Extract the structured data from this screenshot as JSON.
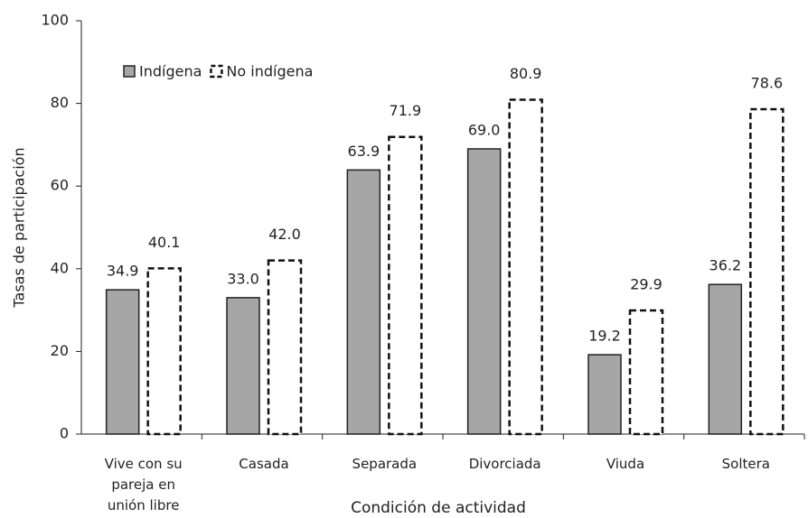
{
  "chart_data": {
    "type": "bar",
    "x_label": "Condición de actividad",
    "y_label": "Tasas de participación",
    "categories": [
      "Vive con su pareja en unión libre",
      "Casada",
      "Separada",
      "Divorciada",
      "Viuda",
      "Soltera"
    ],
    "series": [
      {
        "name": "Indígena",
        "color": "#a6a6a6",
        "values": [
          34.9,
          33.0,
          63.9,
          69.0,
          19.2,
          36.2
        ],
        "value_labels": [
          "34.9",
          "33.0",
          "63.9",
          "69.0",
          "19.2",
          "36.2"
        ]
      },
      {
        "name": "No indígena",
        "color": "#ffffff",
        "values": [
          40.1,
          42.0,
          71.9,
          80.9,
          29.9,
          78.6
        ],
        "value_labels": [
          "40.1",
          "42.0",
          "71.9",
          "80.9",
          "29.9",
          "78.6"
        ]
      }
    ],
    "ylim": [
      0,
      100
    ],
    "yticks": [
      0,
      20,
      40,
      60,
      80,
      100
    ],
    "grid": false
  }
}
